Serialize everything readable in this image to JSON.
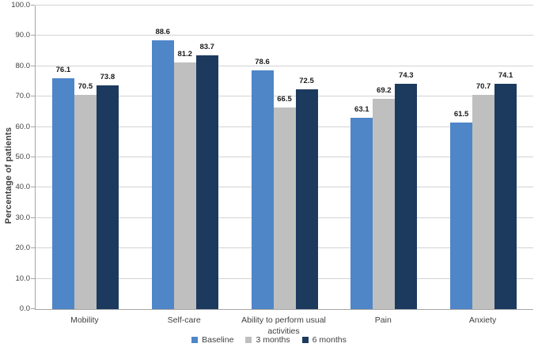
{
  "chart_data": {
    "type": "bar",
    "title": "",
    "xlabel": "",
    "ylabel": "Percentage of patients",
    "categories": [
      "Mobility",
      "Self-care",
      "Ability to perform usual activities",
      "Pain",
      "Anxiety"
    ],
    "series": [
      {
        "name": "Baseline",
        "color": "#4e86c8",
        "values": [
          76.1,
          88.6,
          78.6,
          63.1,
          61.5
        ]
      },
      {
        "name": "3 months",
        "color": "#bfbfbf",
        "values": [
          70.5,
          81.2,
          66.5,
          69.2,
          70.7
        ]
      },
      {
        "name": "6 months",
        "color": "#1c3a5e",
        "values": [
          73.8,
          83.7,
          72.5,
          74.3,
          74.1
        ]
      }
    ],
    "ylim": [
      0,
      100
    ],
    "ytick_step": 10,
    "ytick_labels": [
      "0.0",
      "10.0",
      "20.0",
      "30.0",
      "40.0",
      "50.0",
      "60.0",
      "70.0",
      "80.0",
      "90.0",
      "100.0"
    ],
    "grid": "horizontal",
    "legend_position": "bottom",
    "data_labels": true
  },
  "colors": {
    "gridline": "#d3d3d3",
    "axis_line": "#a6a6a6",
    "tick_text": "#3f3f3f",
    "data_label_text": "#1a1a1a",
    "background": "#ffffff"
  }
}
